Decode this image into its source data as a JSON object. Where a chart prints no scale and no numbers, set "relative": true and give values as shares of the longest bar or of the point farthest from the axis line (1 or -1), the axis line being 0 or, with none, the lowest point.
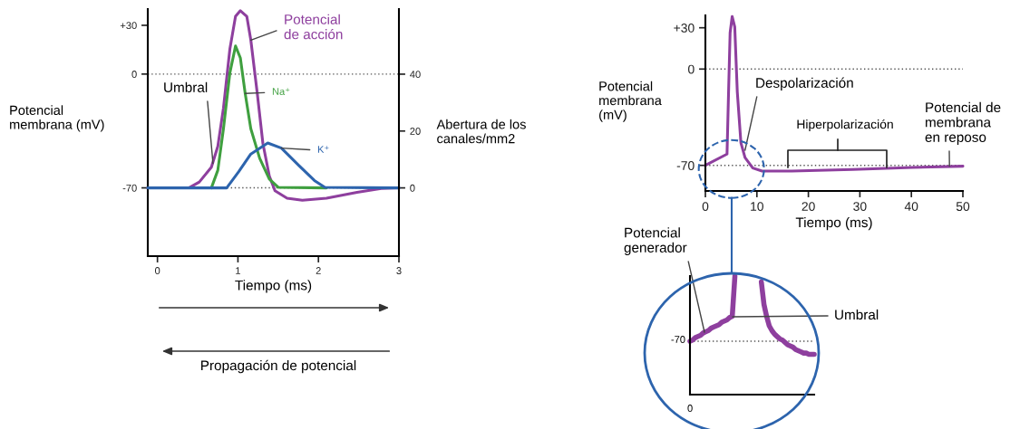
{
  "chart_data": [
    {
      "type": "line",
      "xlabel": "Tiempo (ms)",
      "ylabel": "Potencial\nmembrana (mV)",
      "y2label": "Abertura de los\ncanales/mm2",
      "xlim": [
        -0.12,
        3
      ],
      "xticks": [
        0,
        1,
        2,
        3
      ],
      "ylim": [
        -112,
        40
      ],
      "yticks": [
        {
          "value": 30,
          "label": "+30"
        },
        0,
        -70
      ],
      "y2lim": [
        -24,
        62.9
      ],
      "y2ticks": [
        0,
        20,
        40
      ],
      "ref_lines": [
        {
          "axis": "y",
          "value": 0,
          "line_style": "dotted",
          "color": "#555555"
        },
        {
          "axis": "y",
          "value": -70,
          "line_style": "dotted",
          "color": "#555555"
        }
      ],
      "annotations": [
        {
          "text": "Umbral",
          "x": 0.69,
          "y": -55
        },
        "Propagación de potencial"
      ],
      "series": [
        {
          "name": "Potencial\nde acción",
          "color": "#8e3f9e",
          "x": [
            -0.12,
            0.39,
            0.52,
            0.67,
            0.75,
            0.82,
            0.9,
            0.97,
            1.03,
            1.11,
            1.16,
            1.24,
            1.31,
            1.39,
            1.46,
            1.61,
            1.8,
            2.1,
            2.48,
            2.78,
            3.0
          ],
          "values": [
            -70,
            -70,
            -66.4,
            -57.3,
            -44.5,
            -20.9,
            15.5,
            35.5,
            39,
            35.5,
            20.9,
            -11.8,
            -42.7,
            -62.7,
            -71.8,
            -76.4,
            -77.6,
            -76.4,
            -72.7,
            -70.4,
            -70
          ]
        },
        {
          "name": "Na⁺",
          "axis": "y2",
          "color": "#3f9f3f",
          "x": [
            0.67,
            0.75,
            0.82,
            0.9,
            0.97,
            1.03,
            1.09,
            1.16,
            1.27,
            1.39,
            1.5,
            2.1
          ],
          "values": [
            0,
            6.2,
            20.8,
            40.5,
            49.9,
            45.7,
            33.2,
            20.8,
            10.4,
            3.1,
            0.2,
            0
          ]
        },
        {
          "name": "K⁺",
          "axis": "y2",
          "color": "#2d64ad",
          "x": [
            -0.12,
            0.86,
            1.01,
            1.16,
            1.37,
            1.54,
            1.76,
            1.95,
            2.08,
            3.0
          ],
          "values": [
            0,
            0,
            5.7,
            11.9,
            15.8,
            14.0,
            7.8,
            2.6,
            0.2,
            0
          ]
        }
      ]
    },
    {
      "type": "line",
      "xlabel": "Tiempo (ms)",
      "ylabel": "Potencial\nmembrana\n(mV)",
      "xlim": [
        0,
        50
      ],
      "xticks": [
        0,
        10,
        20,
        30,
        40,
        50
      ],
      "ylim": [
        -88.6,
        39
      ],
      "yticks": [
        {
          "value": 30,
          "label": "+30"
        },
        0,
        -70
      ],
      "ref_lines": [
        {
          "axis": "y",
          "value": 0,
          "line_style": "dotted",
          "color": "#555555"
        },
        {
          "axis": "y",
          "value": -70,
          "line_style": "dotted",
          "color": "#555555"
        }
      ],
      "annotations": [
        {
          "text": "Despolarización",
          "x": 7.7,
          "y": -59
        },
        "Hiperpolarización",
        {
          "text": "Potencial de\nmembrana\nen reposo",
          "x": 47.4,
          "y": -70.6
        }
      ],
      "series": [
        {
          "color": "#8e3f9e",
          "x": [
            0,
            4.2,
            4.5,
            4.8,
            5.2,
            5.7,
            6.2,
            6.9,
            7.7,
            9.2,
            11.0,
            16.8,
            28.6,
            40.3,
            50
          ],
          "values": [
            -70,
            -61.8,
            -16.8,
            26.3,
            38.2,
            30.7,
            -16.8,
            -53.6,
            -64.4,
            -71.9,
            -74.1,
            -74.1,
            -73,
            -71.5,
            -70.6
          ]
        }
      ]
    },
    {
      "type": "line",
      "relative": true,
      "categories": [
        null,
        null,
        null,
        null,
        null,
        null,
        null,
        null,
        null,
        null,
        null,
        null,
        null,
        null,
        null,
        null,
        null,
        null,
        null,
        null,
        null,
        null,
        null,
        null,
        null,
        null,
        null,
        null,
        null,
        null,
        null,
        null,
        null,
        null,
        null,
        null,
        null,
        null,
        null,
        null,
        null,
        null,
        null,
        null,
        null,
        null,
        null,
        null
      ],
      "ref_lines": [
        {
          "axis": "y",
          "value": 0.45,
          "line_style": "dotted",
          "color": "#555555"
        }
      ],
      "annotations": [
        "Umbral",
        "Potencial\ngenerador",
        "-70",
        "0"
      ],
      "series": [
        {
          "color": "#8e3f9e",
          "values": [
            0.45,
            0.46,
            0.48,
            0.49,
            0.5,
            0.52,
            0.53,
            0.54,
            0.56,
            0.57,
            0.58,
            0.59,
            0.61,
            0.62,
            0.63,
            0.65,
            0.66,
            1.0,
            null,
            null,
            null,
            null,
            null,
            null,
            null,
            null,
            null,
            null,
            null,
            null,
            null,
            null,
            null,
            null,
            null,
            null,
            null,
            null,
            null,
            null,
            null,
            null,
            null,
            null,
            null,
            null,
            null,
            null
          ]
        },
        {
          "color": "#8e3f9e",
          "values": [
            null,
            null,
            null,
            null,
            null,
            null,
            null,
            null,
            null,
            null,
            null,
            null,
            null,
            null,
            null,
            null,
            null,
            null,
            null,
            null,
            null,
            null,
            null,
            null,
            null,
            null,
            null,
            0.95,
            0.76,
            0.66,
            0.58,
            0.54,
            0.51,
            0.49,
            0.47,
            0.46,
            0.44,
            0.42,
            0.41,
            0.4,
            0.38,
            0.37,
            0.36,
            0.35,
            0.35,
            0.34,
            0.34,
            0.34
          ]
        }
      ]
    }
  ]
}
